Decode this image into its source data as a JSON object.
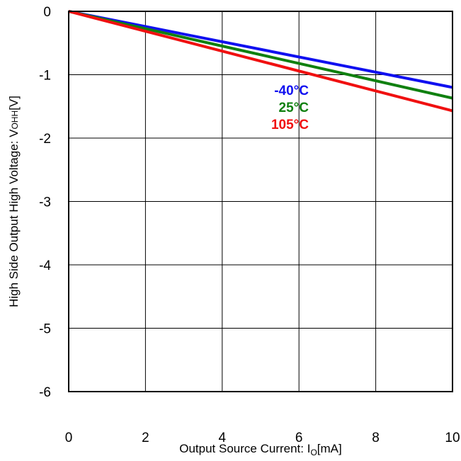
{
  "chart_data": {
    "type": "line",
    "title": "",
    "xlabel_main": "Output Source Current: I",
    "xlabel_sub": "O",
    "xlabel_unit": "[mA]",
    "ylabel_main": "High Side Output High Voltage: V",
    "ylabel_sub": "OHH",
    "ylabel_unit": "[V]",
    "xlim": [
      0,
      10
    ],
    "ylim": [
      -6,
      0
    ],
    "x_ticks": [
      "0",
      "2",
      "4",
      "6",
      "8",
      "10"
    ],
    "y_ticks": [
      "0",
      "-1",
      "-2",
      "-3",
      "-4",
      "-5",
      "-6"
    ],
    "grid": true,
    "legend_placement": "inline-right",
    "series": [
      {
        "name": "-40°C",
        "color": "#1010f0",
        "x": [
          0,
          10
        ],
        "y": [
          0,
          -1.2
        ]
      },
      {
        "name": "25°C",
        "color": "#108010",
        "x": [
          0,
          10
        ],
        "y": [
          0,
          -1.37
        ]
      },
      {
        "name": "105°C",
        "color": "#f01010",
        "x": [
          0,
          10
        ],
        "y": [
          0,
          -1.57
        ]
      }
    ]
  }
}
